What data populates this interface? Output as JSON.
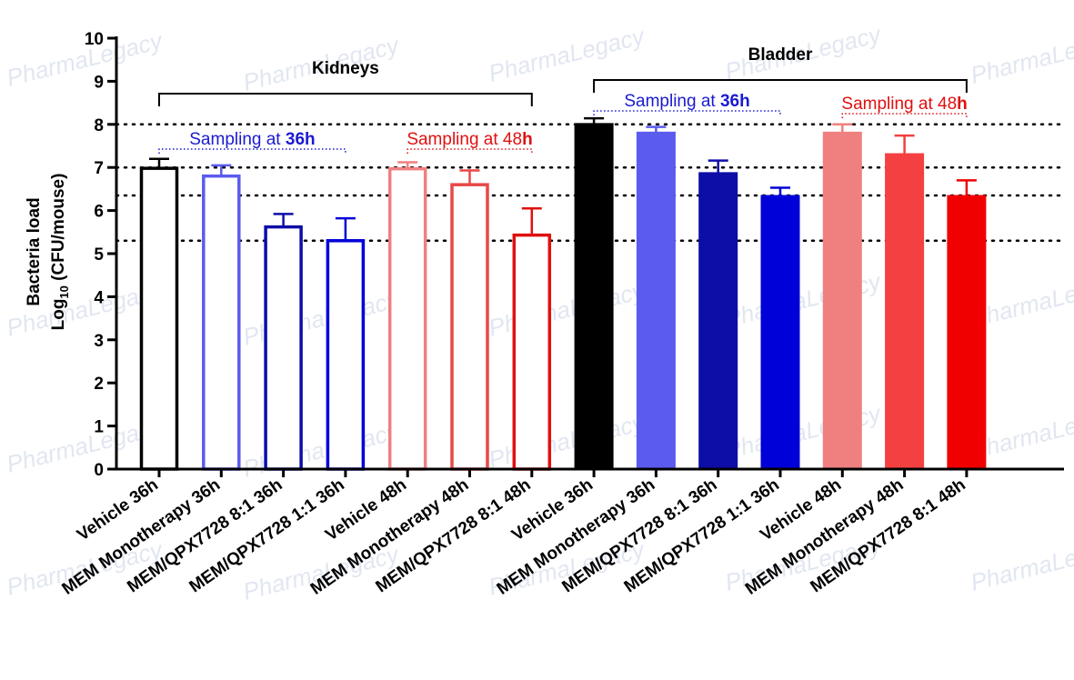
{
  "chart_data": {
    "type": "bar",
    "ylabel": "Bacteria load",
    "ylabel2_prefix": "Log",
    "ylabel2_sub": "10",
    "ylabel2_suffix": " (CFU/mouse)",
    "ylim": [
      0,
      10
    ],
    "yticks": [
      0,
      1,
      2,
      3,
      4,
      5,
      6,
      7,
      8,
      9,
      10
    ],
    "reference_lines": [
      8.0,
      7.0,
      6.35,
      5.3
    ],
    "categories": [
      "Vehicle 36h",
      "MEM Monotherapy 36h",
      "MEM/QPX7728 8:1 36h",
      "MEM/QPX7728 1:1 36h",
      "Vehicle 48h",
      "MEM Monotherapy 48h",
      "MEM/QPX7728 8:1 48h",
      "Vehicle 36h",
      "MEM Monotherapy 36h",
      "MEM/QPX7728 8:1 36h",
      "MEM/QPX7728 1:1 36h",
      "Vehicle 48h",
      "MEM Monotherapy 48h",
      "MEM/QPX7728 8:1 48h"
    ],
    "values": [
      6.98,
      6.8,
      5.62,
      5.3,
      6.97,
      6.6,
      5.43,
      8.02,
      7.82,
      6.88,
      6.35,
      7.82,
      7.32,
      6.35
    ],
    "errors": [
      0.22,
      0.25,
      0.3,
      0.52,
      0.15,
      0.33,
      0.62,
      0.12,
      0.12,
      0.28,
      0.18,
      0.18,
      0.42,
      0.35
    ],
    "colors": [
      "#000000",
      "#5b5bef",
      "#0d0da8",
      "#0000d8",
      "#f08080",
      "#e84848",
      "#e01010",
      "#000000",
      "#5b5bef",
      "#0d0da8",
      "#0000d8",
      "#f08080",
      "#f44040",
      "#f00000"
    ],
    "filled": [
      false,
      false,
      false,
      false,
      false,
      false,
      false,
      true,
      true,
      true,
      true,
      true,
      true,
      true
    ],
    "groups": [
      {
        "label": "Kidneys",
        "from": 0,
        "to": 6
      },
      {
        "label": "Bladder",
        "from": 7,
        "to": 13
      }
    ],
    "sampling": [
      {
        "prefix": "Sampling at ",
        "emph": "36h",
        "color": "#1a1ad0",
        "from": 0,
        "to": 3
      },
      {
        "prefix": "Sampling at 48",
        "emph": "h",
        "color": "#e01010",
        "from": 4,
        "to": 6
      },
      {
        "prefix": "Sampling at ",
        "emph": "36h",
        "color": "#1a1ad0",
        "from": 7,
        "to": 10
      },
      {
        "prefix": "Sampling at 48",
        "emph": "h",
        "color": "#e01010",
        "from": 11,
        "to": 13
      }
    ]
  },
  "watermark": {
    "text": "PharmaLegacy"
  }
}
